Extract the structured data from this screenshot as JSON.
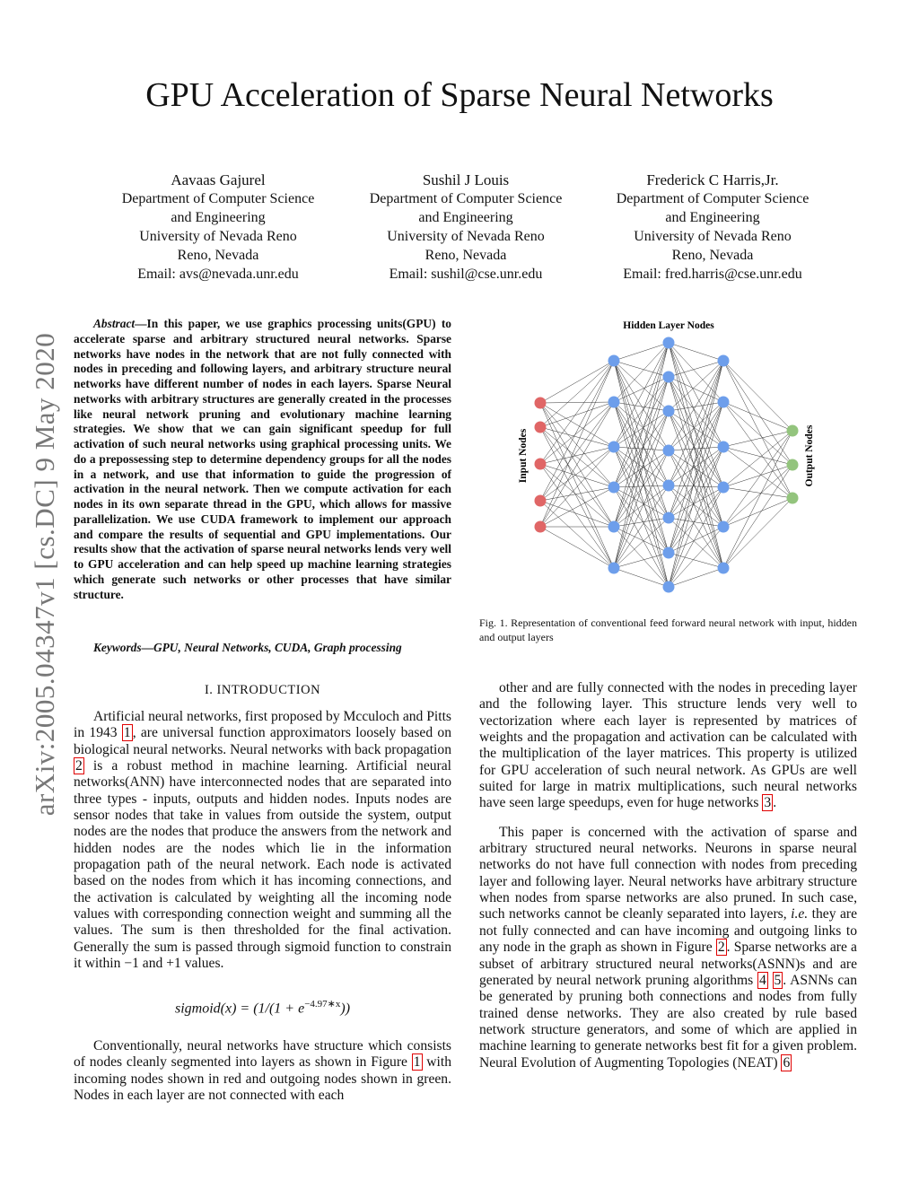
{
  "title": "GPU Acceleration of Sparse Neural Networks",
  "sidebar": "arXiv:2005.04347v1  [cs.DC]  9 May 2020",
  "authors": [
    {
      "name": "Aavaas Gajurel",
      "lines": [
        "Department of Computer Science",
        "and Engineering",
        "University of Nevada Reno",
        "Reno, Nevada",
        "Email: avs@nevada.unr.edu"
      ]
    },
    {
      "name": "Sushil J Louis",
      "lines": [
        "Department of Computer Science",
        "and Engineering",
        "University of Nevada Reno",
        "Reno, Nevada",
        "Email: sushil@cse.unr.edu"
      ]
    },
    {
      "name": "Frederick C Harris,Jr.",
      "lines": [
        "Department of Computer Science",
        "and Engineering",
        "University of Nevada Reno",
        "Reno, Nevada",
        "Email: fred.harris@cse.unr.edu"
      ]
    }
  ],
  "abstract": {
    "label": "Abstract",
    "text": "—In this paper, we use graphics processing units(GPU) to accelerate sparse and arbitrary structured neural networks. Sparse networks have nodes in the network that are not fully connected with nodes in preceding and following layers, and arbitrary structure neural networks have different number of nodes in each layers. Sparse Neural networks with arbitrary structures are generally created in the processes like neural network pruning and evolutionary machine learning strategies. We show that we can gain significant speedup for full activation of such neural networks using graphical processing units. We do a prepossessing step to determine dependency groups for all the nodes in a network, and use that information to guide the progression of activation in the neural network. Then we compute activation for each nodes in its own separate thread in the GPU, which allows for massive parallelization. We use CUDA framework to implement our approach and compare the results of sequential and GPU implementations. Our results show that the activation of sparse neural networks lends very well to GPU acceleration and can help speed up machine learning strategies which generate such networks or other processes that have similar structure."
  },
  "keywords": "Keywords—GPU, Neural Networks, CUDA, Graph processing",
  "section1": "I.  INTRODUCTION",
  "left_paragraphs": [
    [
      {
        "t": "Artificial neural networks, first proposed by Mcculoch and Pitts in 1943 "
      },
      {
        "t": "1",
        "cite": true
      },
      {
        "t": ", are universal function approximators loosely based on biological neural networks. Neural networks with back propagation "
      },
      {
        "t": "2",
        "cite": true
      },
      {
        "t": " is a robust method in machine learning. Artificial neural networks(ANN) have interconnected nodes that are separated into three types - inputs, outputs and hidden nodes. Inputs nodes are sensor nodes that take in values from outside the system, output nodes are the nodes that produce the answers from the network and hidden nodes are the nodes which lie in the information propagation path of the neural network. Each node is activated based on the nodes from which it has incoming connections, and the activation is calculated by weighting all the incoming node values with corresponding connection weight and summing all the values. The sum is then thresholded for the final activation. Generally the sum is passed through sigmoid function to constrain it within −1 and +1 values."
      }
    ]
  ],
  "equation": {
    "lhs": "sigmoid(x) = (1/(1 + e",
    "exp": "−4.97∗x",
    "rhs": "))"
  },
  "left_paragraphs2": [
    [
      {
        "t": "Conventionally, neural networks have structure which consists of nodes cleanly segmented into layers as shown in Figure "
      },
      {
        "t": "1",
        "cite": true
      },
      {
        "t": " with incoming nodes shown in red and outgoing nodes shown in green. Nodes in each layer are not connected with each"
      }
    ]
  ],
  "right_paragraphs": [
    [
      {
        "t": "other and are fully connected with the nodes in preceding layer and the following layer. This structure lends very well to vectorization where each layer is represented by matrices of weights and the propagation and activation can be calculated with the multiplication of the layer matrices. This property is utilized for GPU acceleration of such neural network. As GPUs are well suited for large in matrix multiplications, such neural networks have seen large speedups, even for huge networks "
      },
      {
        "t": "3",
        "cite": true
      },
      {
        "t": "."
      }
    ],
    [
      {
        "t": "This paper is concerned with the activation of sparse and arbitrary structured neural networks. Neurons in sparse neural networks do not have full connection with nodes from preceding layer and following layer. Neural networks have arbitrary structure when nodes from sparse networks are also pruned. In such case, such networks cannot be cleanly separated into layers, "
      },
      {
        "t": "i.e.",
        "i": true
      },
      {
        "t": " they are not fully connected and can have incoming and outgoing links to any node in the graph as shown in Figure "
      },
      {
        "t": "2",
        "cite": true
      },
      {
        "t": ". Sparse networks are a subset of arbitrary structured neural networks(ASNN)s and are generated by neural network pruning algorithms "
      },
      {
        "t": "4",
        "cite": true
      },
      {
        "t": " "
      },
      {
        "t": "5",
        "cite": true
      },
      {
        "t": ". ASNNs can be generated by pruning both connections and nodes from fully trained dense networks. They are also created by rule based network structure generators, and some of which are applied in machine learning to generate networks best fit for a given problem. Neural Evolution of Augmenting Topologies (NEAT) "
      },
      {
        "t": "6",
        "cite": true
      }
    ]
  ],
  "figure": {
    "label_hidden": "Hidden Layer Nodes",
    "label_input": "Input Nodes",
    "label_output": "Output Nodes",
    "layers": [
      5,
      6,
      8,
      6,
      3
    ],
    "colors": {
      "input": "#e06666",
      "hidden": "#6d9eeb",
      "output": "#93c47d"
    },
    "caption": "Fig. 1.   Representation of conventional feed forward neural network with input, hidden and output layers"
  }
}
